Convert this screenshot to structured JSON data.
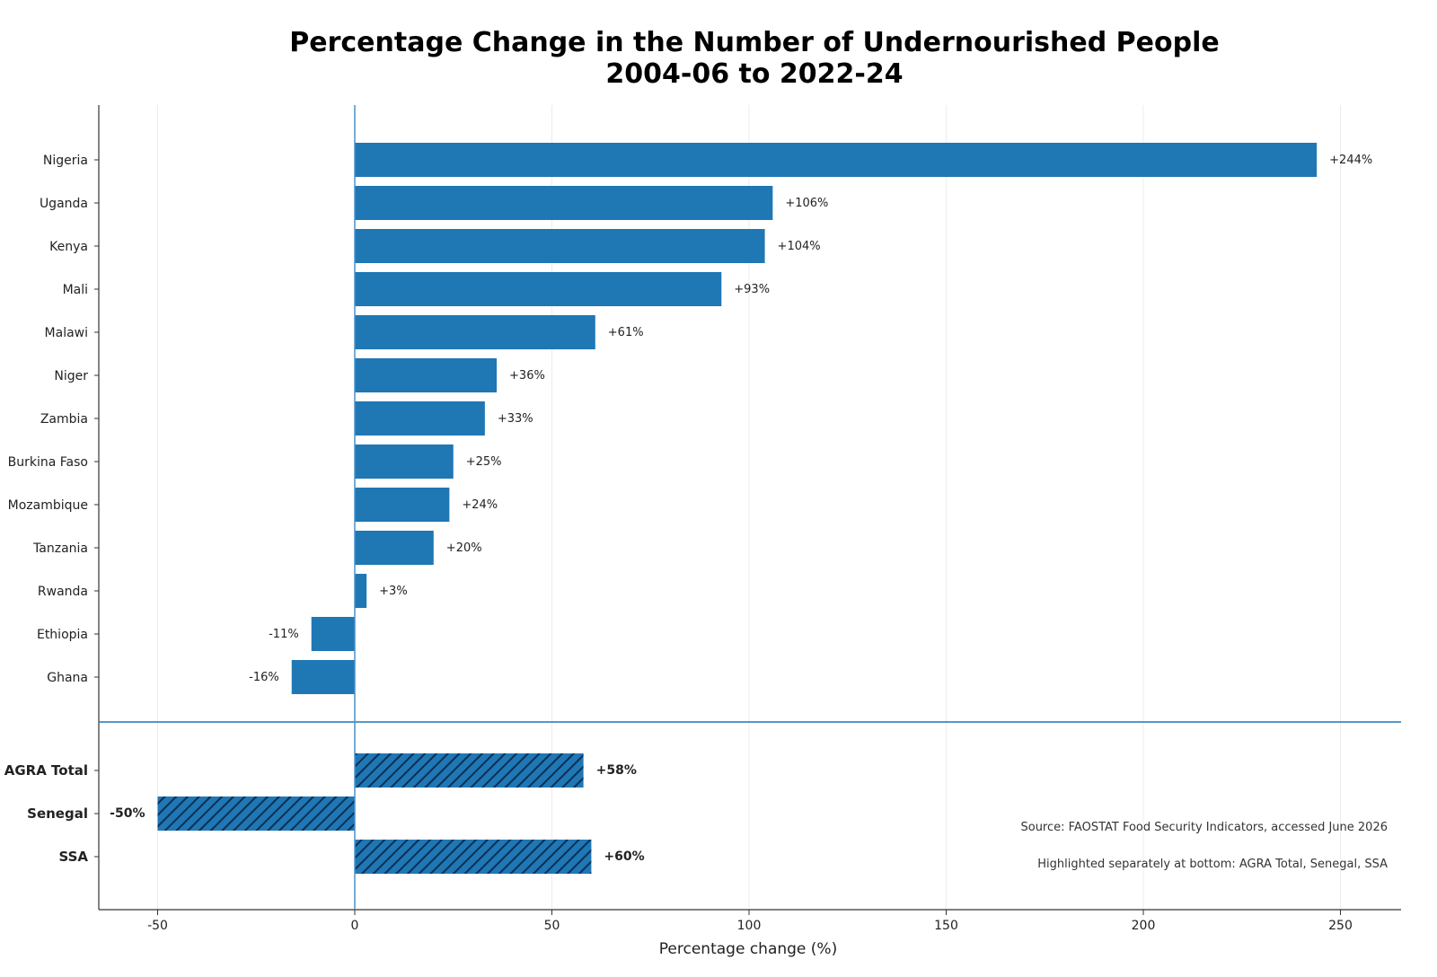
{
  "chart_data": {
    "type": "bar",
    "orientation": "horizontal",
    "title_lines": [
      "Percentage Change in the Number of Undernourished People",
      "2004-06 to 2022-24"
    ],
    "xlabel": "Percentage change (%)",
    "ylabel": "",
    "xlim": [
      -50,
      250
    ],
    "xticks": [
      -50,
      0,
      50,
      100,
      150,
      200,
      250
    ],
    "xtick_labels": [
      "-50",
      "0",
      "50",
      "100",
      "150",
      "200",
      "250"
    ],
    "grid": "vertical",
    "bar_color": "#1f77b4",
    "countries": [
      {
        "name": "Nigeria",
        "value": 244,
        "label": "+244%"
      },
      {
        "name": "Uganda",
        "value": 106,
        "label": "+106%"
      },
      {
        "name": "Kenya",
        "value": 104,
        "label": "+104%"
      },
      {
        "name": "Mali",
        "value": 93,
        "label": "+93%"
      },
      {
        "name": "Malawi",
        "value": 61,
        "label": "+61%"
      },
      {
        "name": "Niger",
        "value": 36,
        "label": "+36%"
      },
      {
        "name": "Zambia",
        "value": 33,
        "label": "+33%"
      },
      {
        "name": "Burkina Faso",
        "value": 25,
        "label": "+25%"
      },
      {
        "name": "Mozambique",
        "value": 24,
        "label": "+24%"
      },
      {
        "name": "Tanzania",
        "value": 20,
        "label": "+20%"
      },
      {
        "name": "Rwanda",
        "value": 3,
        "label": "+3%"
      },
      {
        "name": "Ethiopia",
        "value": -11,
        "label": "-11%"
      },
      {
        "name": "Ghana",
        "value": -16,
        "label": "-16%"
      }
    ],
    "highlighted": [
      {
        "name": "AGRA Total",
        "value": 58,
        "label": "+58%"
      },
      {
        "name": "Senegal",
        "value": -50,
        "label": "-50%"
      },
      {
        "name": "SSA",
        "value": 60,
        "label": "+60%"
      }
    ],
    "annotations": [
      "Source: FAOSTAT Food Security Indicators, accessed June 2026",
      "Highlighted separately at bottom: AGRA Total, Senegal, SSA"
    ]
  }
}
